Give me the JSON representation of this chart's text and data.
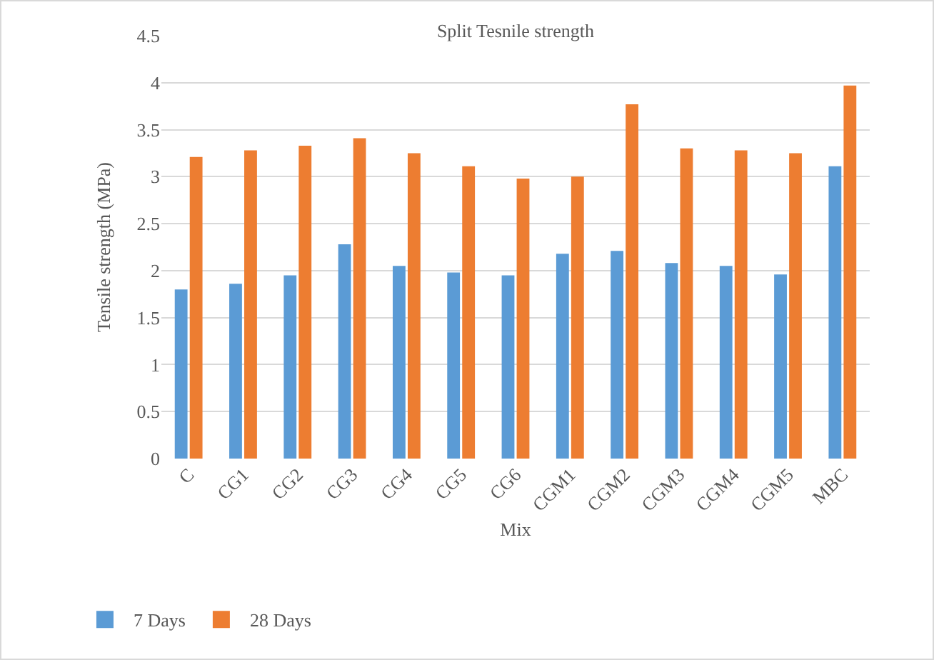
{
  "chart_data": {
    "type": "bar",
    "title": "Split Tesnile strength",
    "xlabel": "Mix",
    "ylabel": "Tensile strength (MPa)",
    "categories": [
      "C",
      "CG1",
      "CG2",
      "CG3",
      "CG4",
      "CG5",
      "CG6",
      "CGM1",
      "CGM2",
      "CGM3",
      "CGM4",
      "CGM5",
      "MBC"
    ],
    "series": [
      {
        "name": "7 Days",
        "color": "#5b9bd5",
        "values": [
          1.8,
          1.86,
          1.95,
          2.28,
          2.05,
          1.98,
          1.95,
          2.18,
          2.21,
          2.08,
          2.05,
          1.96,
          3.11
        ]
      },
      {
        "name": "28 Days",
        "color": "#ed7d31",
        "values": [
          3.21,
          3.28,
          3.33,
          3.41,
          3.25,
          3.11,
          2.98,
          3.0,
          3.77,
          3.3,
          3.28,
          3.25,
          3.97
        ]
      }
    ],
    "ylim": [
      0,
      4.5
    ],
    "yticks": [
      0,
      0.5,
      1,
      1.5,
      2,
      2.5,
      3,
      3.5,
      4,
      4.5
    ],
    "grid": "y",
    "legend": "bottom left"
  }
}
